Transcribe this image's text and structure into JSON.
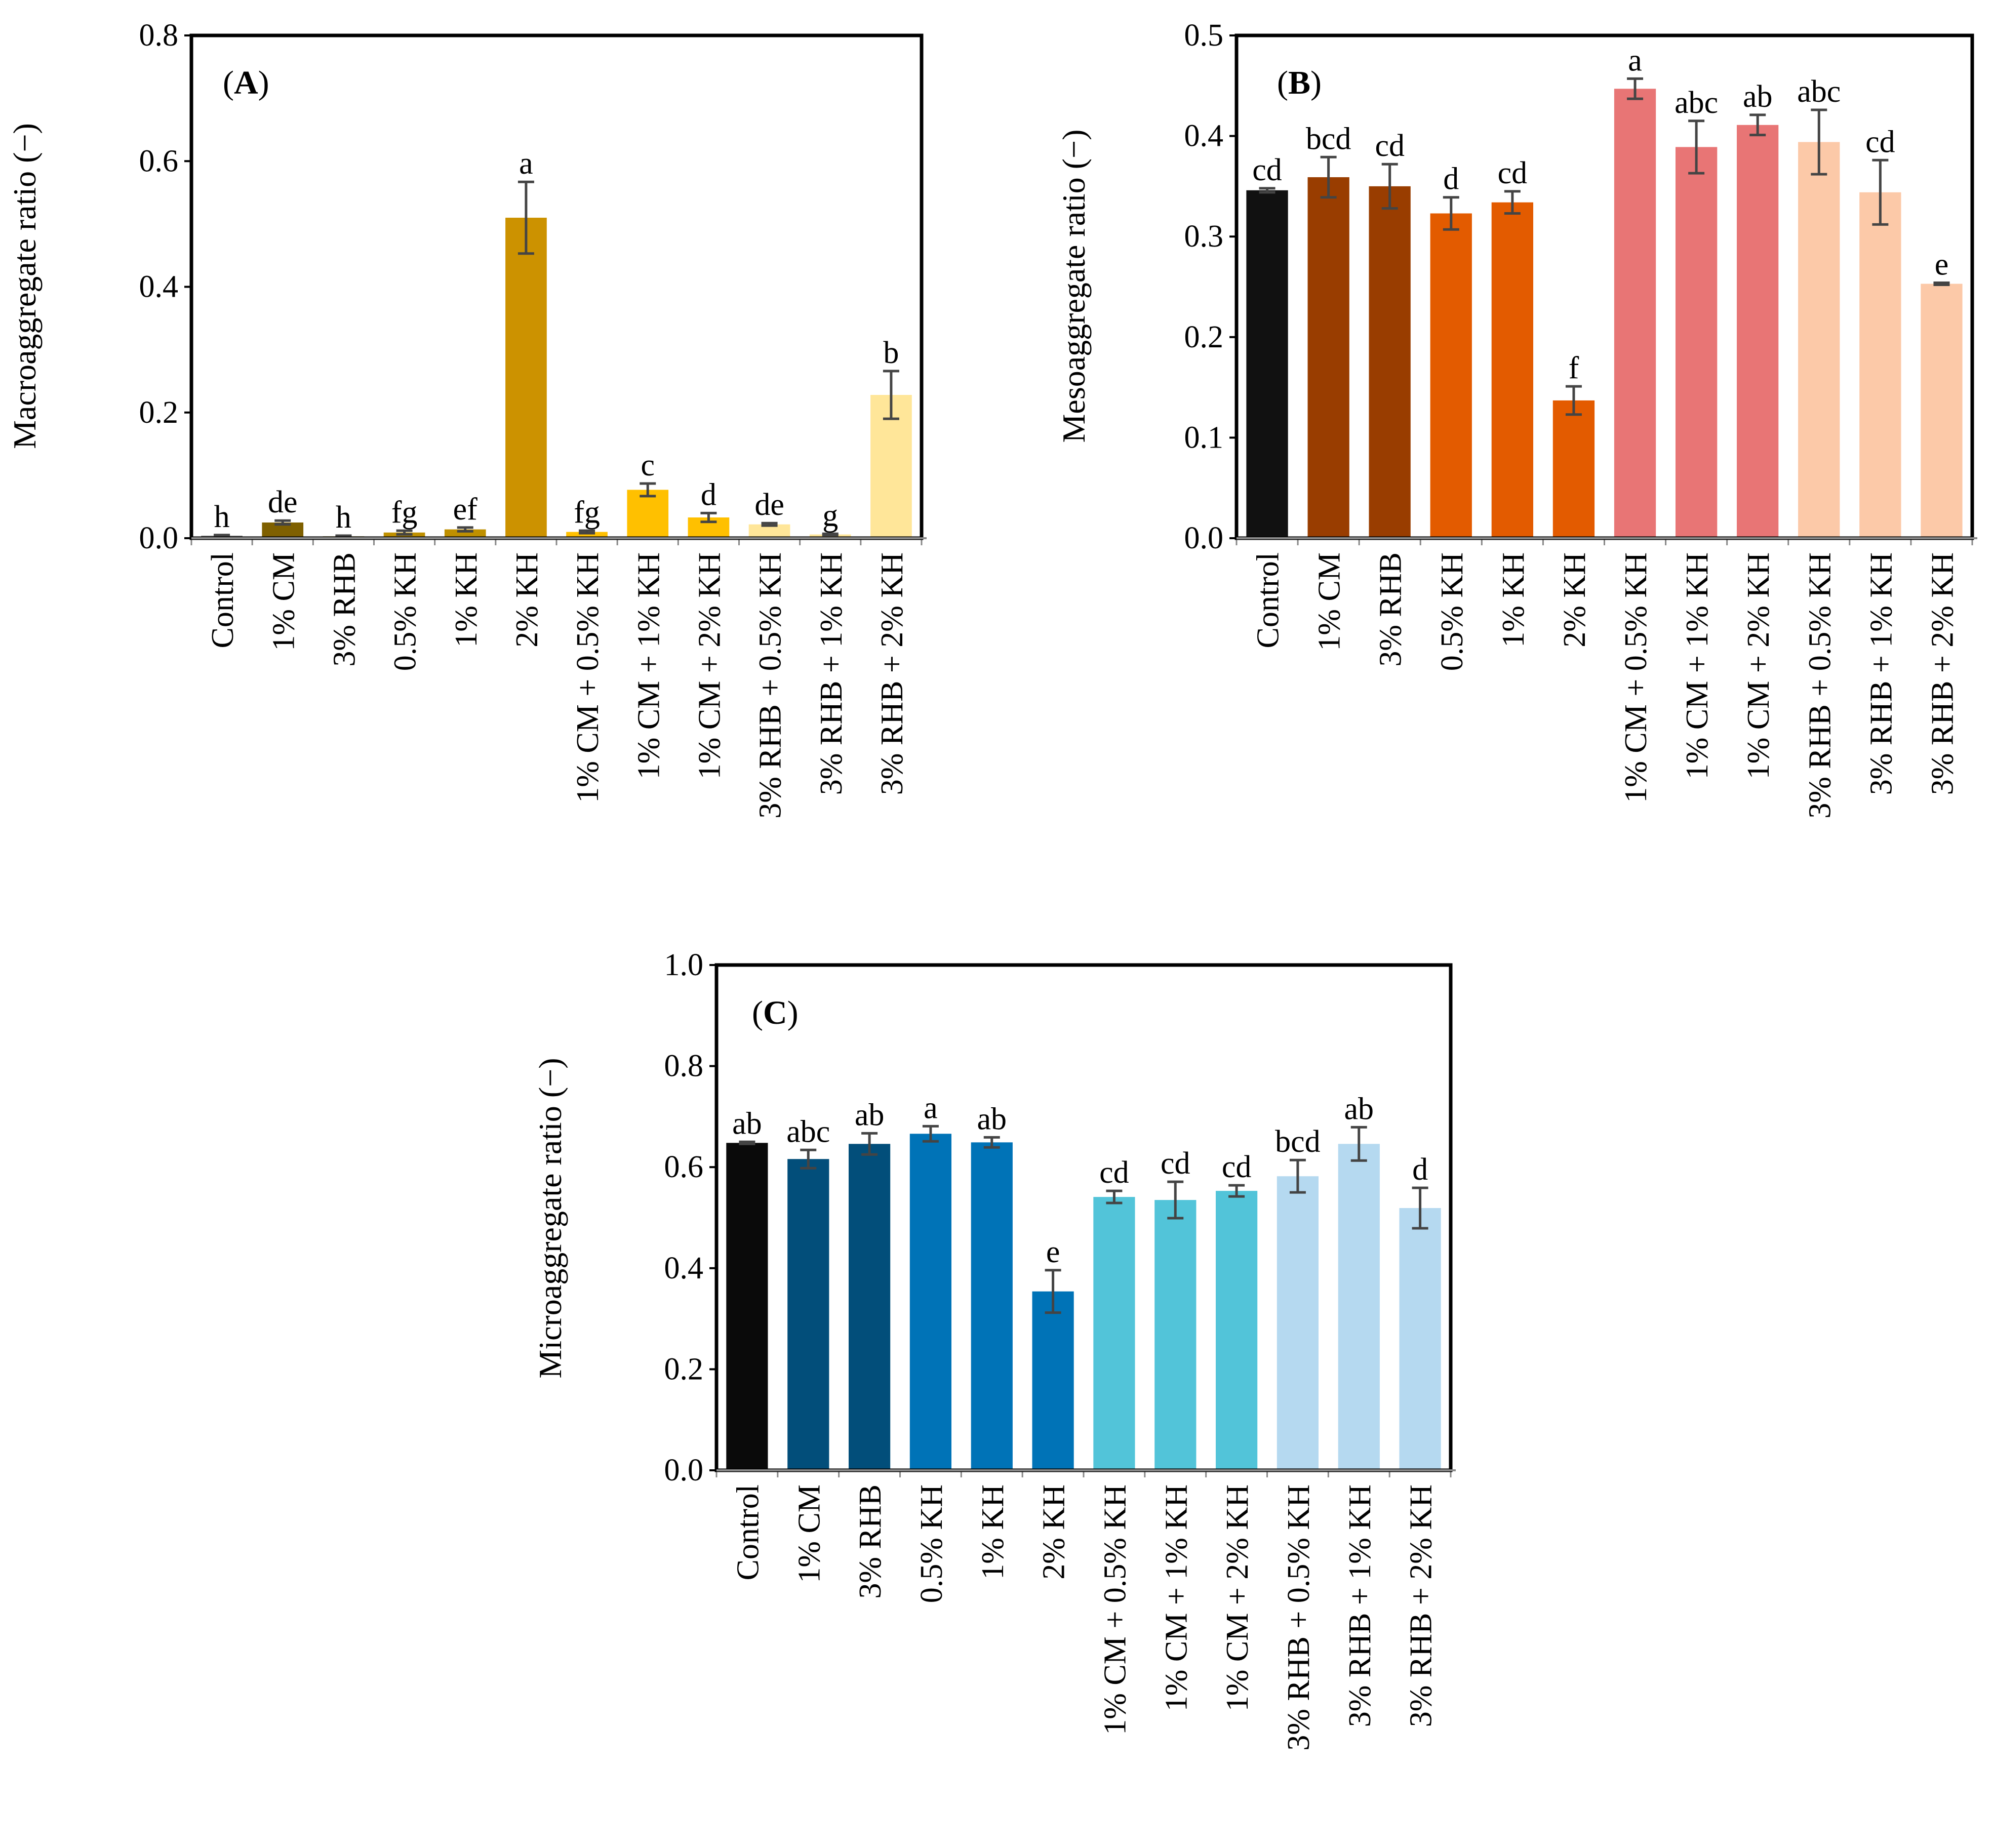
{
  "chart_data": [
    {
      "type": "bar",
      "panel_id": "A",
      "panel_label_open": "(",
      "panel_label_close": ")",
      "ylabel": "Macroaggregate ratio (−)",
      "ylim": [
        0,
        0.8
      ],
      "yticks": [
        "0.0",
        "0.2",
        "0.4",
        "0.6",
        "0.8"
      ],
      "categories": [
        "Control",
        "1% CM",
        "3% RHB",
        "0.5% KH",
        "1% KH",
        "2% KH",
        "1% CM + 0.5% KH",
        "1% CM + 1% KH",
        "1% CM + 2% KH",
        "3% RHB + 0.5% KH",
        "3% RHB + 1% KH",
        "3% RHB + 2% KH"
      ],
      "values": [
        0.004,
        0.025,
        0.003,
        0.009,
        0.014,
        0.51,
        0.01,
        0.077,
        0.033,
        0.022,
        0.006,
        0.228
      ],
      "errors": [
        0.001,
        0.003,
        0.001,
        0.003,
        0.003,
        0.057,
        0.002,
        0.01,
        0.007,
        0.002,
        0.001,
        0.038
      ],
      "letters": [
        "h",
        "de",
        "h",
        "fg",
        "ef",
        "a",
        "fg",
        "c",
        "d",
        "de",
        "g",
        "b"
      ],
      "colors": [
        "#7f7f7f",
        "#7f6000",
        "#7f6000",
        "#bf9000",
        "#bf9000",
        "#cc9200",
        "#ffc000",
        "#ffc000",
        "#ffc000",
        "#ffe699",
        "#ffe699",
        "#ffe699"
      ]
    },
    {
      "type": "bar",
      "panel_id": "B",
      "panel_label_open": "(",
      "panel_label_close": ")",
      "ylabel": "Mesoaggregate ratio (−)",
      "ylim": [
        0,
        0.5
      ],
      "yticks": [
        "0.0",
        "0.1",
        "0.2",
        "0.3",
        "0.4",
        "0.5"
      ],
      "categories": [
        "Control",
        "1% CM",
        "3% RHB",
        "0.5% KH",
        "1% KH",
        "2% KH",
        "1% CM + 0.5% KH",
        "1% CM + 1% KH",
        "1% CM + 2% KH",
        "3% RHB + 0.5% KH",
        "3% RHB + 1% KH",
        "3% RHB + 2% KH"
      ],
      "values": [
        0.346,
        0.359,
        0.35,
        0.323,
        0.334,
        0.137,
        0.447,
        0.389,
        0.411,
        0.394,
        0.344,
        0.253
      ],
      "errors": [
        0.002,
        0.02,
        0.022,
        0.016,
        0.011,
        0.014,
        0.01,
        0.026,
        0.01,
        0.032,
        0.032,
        0.001
      ],
      "letters": [
        "cd",
        "bcd",
        "cd",
        "d",
        "cd",
        "f",
        "a",
        "abc",
        "ab",
        "abc",
        "cd",
        "e"
      ],
      "colors": [
        "#111111",
        "#993d00",
        "#993d00",
        "#e35b00",
        "#e35b00",
        "#e35b00",
        "#e87575",
        "#e87575",
        "#e87575",
        "#fcc9a8",
        "#fcc9a8",
        "#fcc9a8"
      ]
    },
    {
      "type": "bar",
      "panel_id": "C",
      "panel_label_open": "(",
      "panel_label_close": ")",
      "ylabel": "Microaggregate ratio (−)",
      "ylim": [
        0,
        1.0
      ],
      "yticks": [
        "0.0",
        "0.2",
        "0.4",
        "0.6",
        "0.8",
        "1.0"
      ],
      "categories": [
        "Control",
        "1% CM",
        "3% RHB",
        "0.5% KH",
        "1% KH",
        "2% KH",
        "1% CM + 0.5% KH",
        "1% CM + 1% KH",
        "1% CM + 2% KH",
        "3% RHB + 0.5% KH",
        "3% RHB + 1% KH",
        "3% RHB + 2% KH"
      ],
      "values": [
        0.648,
        0.616,
        0.646,
        0.666,
        0.649,
        0.354,
        0.541,
        0.535,
        0.553,
        0.582,
        0.646,
        0.519
      ],
      "errors": [
        0.002,
        0.018,
        0.021,
        0.015,
        0.01,
        0.042,
        0.012,
        0.036,
        0.011,
        0.032,
        0.033,
        0.04
      ],
      "letters": [
        "ab",
        "abc",
        "ab",
        "a",
        "ab",
        "e",
        "cd",
        "cd",
        "cd",
        "bcd",
        "ab",
        "d"
      ],
      "colors": [
        "#0a0a0a",
        "#024e7a",
        "#024e7a",
        "#0073b7",
        "#0073b7",
        "#0073b7",
        "#52c4d9",
        "#52c4d9",
        "#52c4d9",
        "#b5d9f0",
        "#b5d9f0",
        "#b5d9f0"
      ]
    }
  ],
  "colors": {
    "axis": "#000000",
    "errorbar": "#444444",
    "background": "#ffffff"
  }
}
